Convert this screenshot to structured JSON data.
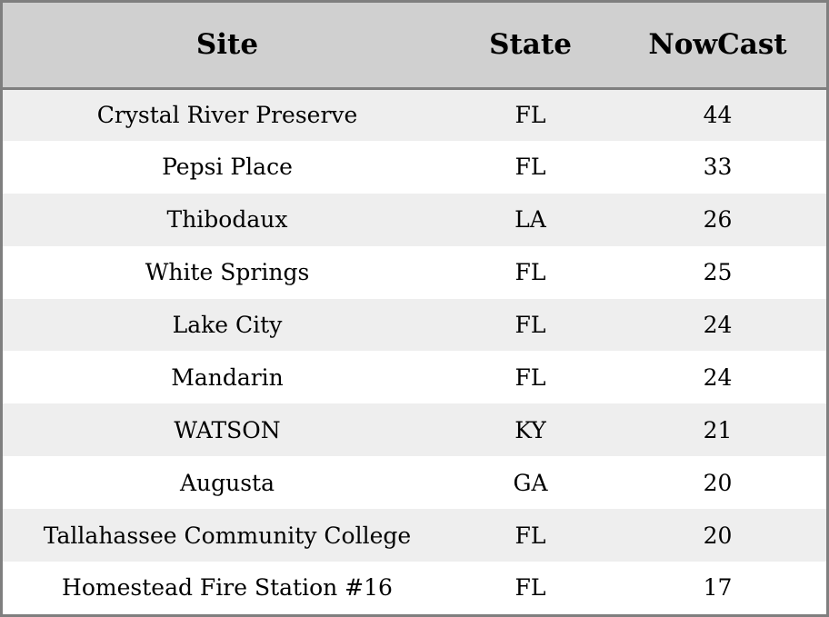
{
  "chart_data": {
    "type": "table",
    "columns": [
      "Site",
      "State",
      "NowCast"
    ],
    "rows": [
      [
        "Crystal River Preserve",
        "FL",
        "44"
      ],
      [
        "Pepsi Place",
        "FL",
        "33"
      ],
      [
        "Thibodaux",
        "LA",
        "26"
      ],
      [
        "White Springs",
        "FL",
        "25"
      ],
      [
        "Lake City",
        "FL",
        "24"
      ],
      [
        "Mandarin",
        "FL",
        "24"
      ],
      [
        "WATSON",
        "KY",
        "21"
      ],
      [
        "Augusta",
        "GA",
        "20"
      ],
      [
        "Tallahassee Community College",
        "FL",
        "20"
      ],
      [
        "Homestead Fire Station #16",
        "FL",
        "17"
      ]
    ]
  },
  "colors": {
    "header_bg": "#d0d0d0",
    "row_alt_bg": "#eeeeee",
    "row_bg": "#ffffff",
    "border": "#7f7f7f"
  }
}
